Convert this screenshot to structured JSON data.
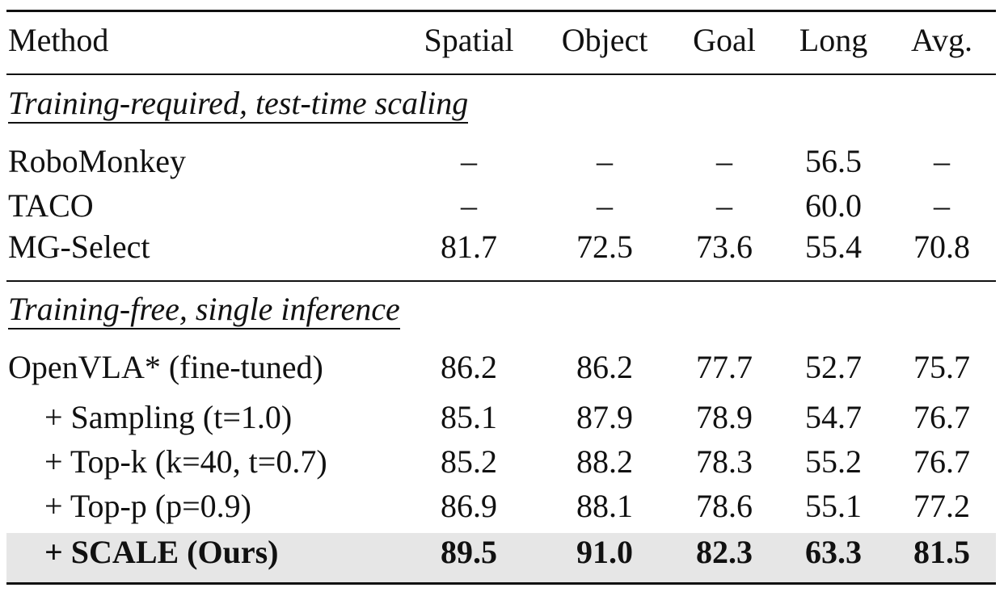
{
  "table": {
    "header": [
      "Method",
      "Spatial",
      "Object",
      "Goal",
      "Long",
      "Avg."
    ],
    "sections": [
      {
        "title": "Training-required, test-time scaling",
        "rows": [
          [
            "RoboMonkey",
            "–",
            "–",
            "–",
            "56.5",
            "–"
          ],
          [
            "TACO",
            "–",
            "–",
            "–",
            "60.0",
            "–"
          ],
          [
            "MG-Select",
            "81.7",
            "72.5",
            "73.6",
            "55.4",
            "70.8"
          ]
        ]
      },
      {
        "title": "Training-free, single inference",
        "rows": [
          [
            "OpenVLA* (fine-tuned)",
            "86.2",
            "86.2",
            "77.7",
            "52.7",
            "75.7"
          ],
          [
            "+ Sampling (t=1.0)",
            "85.1",
            "87.9",
            "78.9",
            "54.7",
            "76.7"
          ],
          [
            "+ Top-k (k=40, t=0.7)",
            "85.2",
            "88.2",
            "78.3",
            "55.2",
            "76.7"
          ],
          [
            "+ Top-p (p=0.9)",
            "86.9",
            "88.1",
            "78.6",
            "55.1",
            "77.2"
          ],
          [
            "+ SCALE (Ours)",
            "89.5",
            "91.0",
            "82.3",
            "63.3",
            "81.5"
          ]
        ]
      }
    ]
  }
}
